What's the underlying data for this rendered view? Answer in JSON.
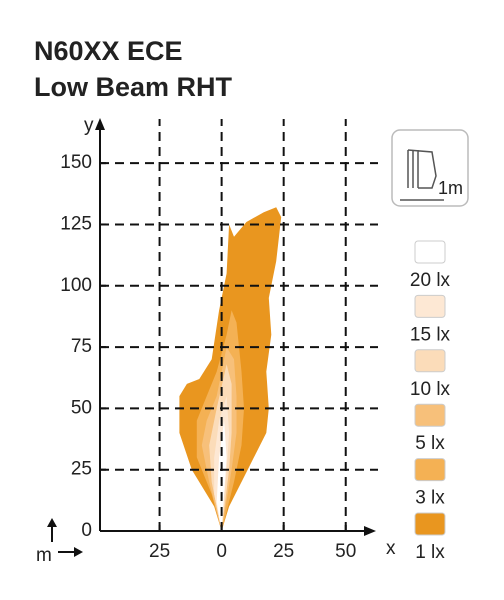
{
  "chart_data": {
    "type": "isolux",
    "title": "N60XX ECE",
    "subtitle": "Low Beam RHT",
    "xlabel": "x",
    "ylabel": "y",
    "unit": "m",
    "icon_label": "1m",
    "xlim": [
      -49,
      63
    ],
    "ylim": [
      0,
      168
    ],
    "xticks": [
      {
        "value": -25,
        "label": "25"
      },
      0,
      25,
      50
    ],
    "yticks": [
      0,
      25,
      50,
      75,
      100,
      125,
      150
    ],
    "grid": true,
    "series": [
      {
        "name": "1 lx",
        "color": "#e9961f",
        "x": [
          0,
          -3,
          -12,
          -17,
          -17,
          -14,
          -9,
          -4,
          -1,
          2,
          3,
          5,
          10,
          17,
          22,
          24,
          22,
          19,
          20,
          18,
          19,
          18,
          13,
          8,
          3,
          0
        ],
        "y": [
          0,
          10,
          25,
          40,
          55,
          60,
          62,
          70,
          90,
          105,
          125,
          120,
          126,
          130,
          132,
          128,
          110,
          95,
          80,
          65,
          50,
          40,
          30,
          20,
          10,
          0
        ]
      },
      {
        "name": "3 lx",
        "color": "#f4b154",
        "x": [
          0,
          -4,
          -10,
          -10,
          -6,
          -2,
          2,
          4,
          6,
          8,
          9,
          8,
          5,
          2,
          0
        ],
        "y": [
          0,
          15,
          30,
          45,
          55,
          65,
          80,
          90,
          85,
          65,
          50,
          35,
          20,
          8,
          0
        ]
      },
      {
        "name": "5 lx",
        "color": "#f7c07a",
        "x": [
          0,
          -5,
          -8,
          -6,
          -2,
          2,
          5,
          6,
          6,
          4,
          0
        ],
        "y": [
          0,
          20,
          35,
          45,
          55,
          75,
          70,
          55,
          40,
          25,
          0
        ]
      },
      {
        "name": "10 lx",
        "color": "#fbdcb9",
        "x": [
          0,
          -4,
          -5,
          -2,
          2,
          4,
          4,
          3,
          0
        ],
        "y": [
          0,
          20,
          35,
          50,
          68,
          60,
          40,
          25,
          0
        ]
      },
      {
        "name": "15 lx",
        "color": "#fde8d4",
        "x": [
          0,
          -3,
          -3,
          -1,
          2,
          3,
          2,
          0
        ],
        "y": [
          0,
          15,
          30,
          45,
          55,
          40,
          25,
          0
        ]
      },
      {
        "name": "20 lx",
        "color": "#ffffff",
        "x": [
          0,
          -2,
          -1,
          1,
          2,
          1,
          0
        ],
        "y": [
          0,
          12,
          30,
          45,
          30,
          15,
          0
        ]
      }
    ]
  }
}
